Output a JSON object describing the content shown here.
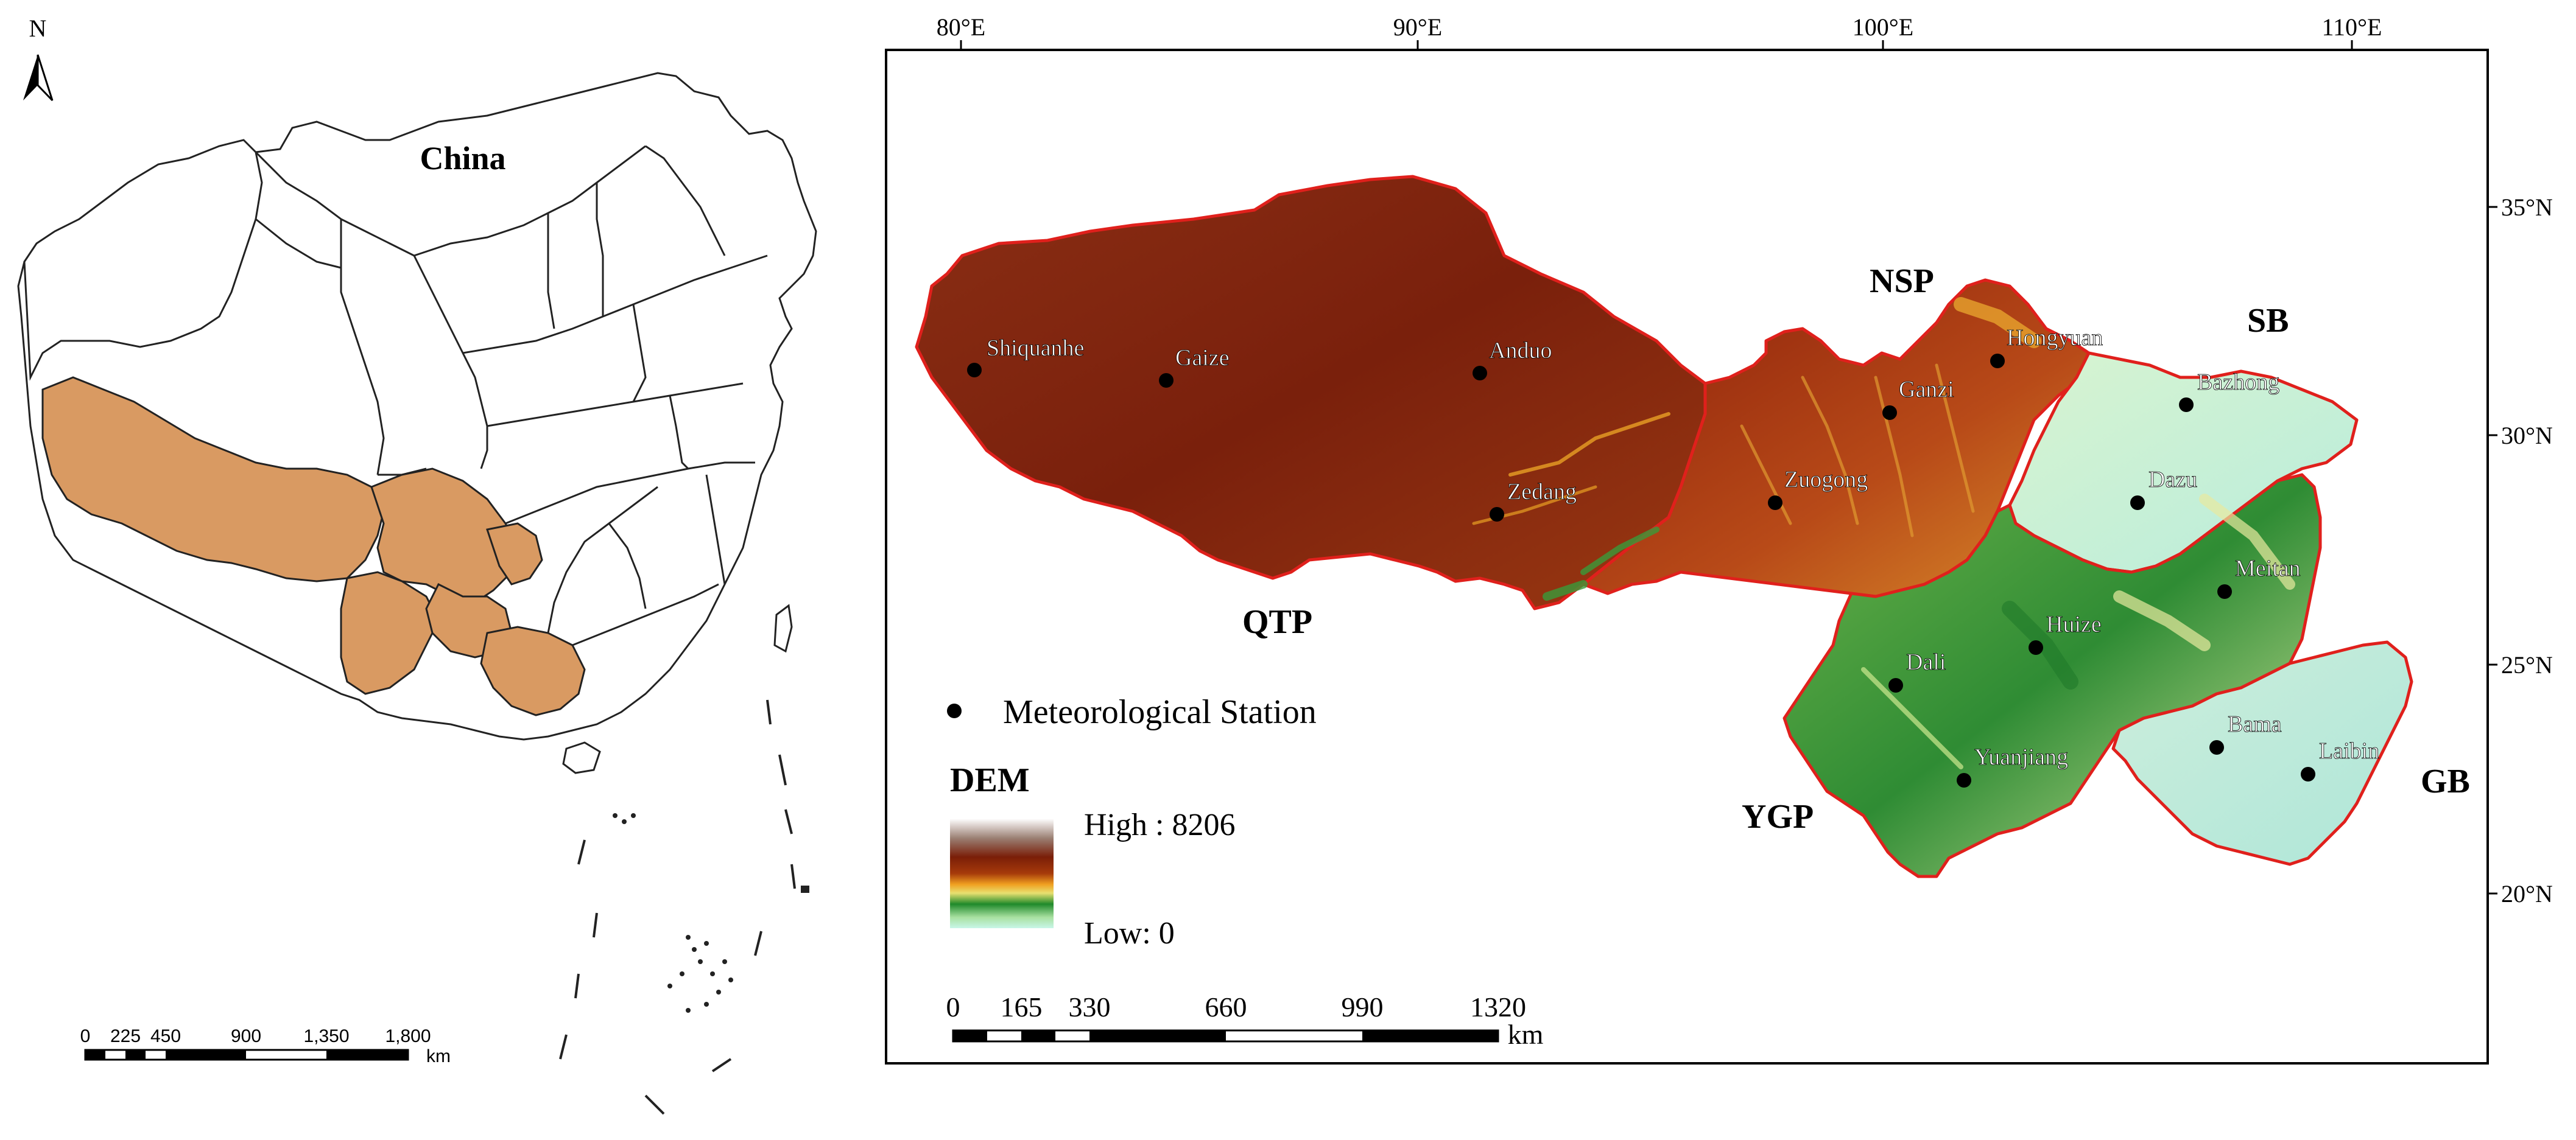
{
  "left_map": {
    "north_label": "N",
    "country_label": "China",
    "highlight_color": "#d99a62",
    "scale_bar": {
      "ticks": [
        "0",
        "225",
        "450",
        "900",
        "1,350",
        "1,800"
      ],
      "unit": "km"
    }
  },
  "right_map": {
    "longitude_labels": [
      "80°E",
      "90°E",
      "100°E",
      "110°E"
    ],
    "latitude_labels": [
      "35°N",
      "30°N",
      "25°N",
      "20°N"
    ],
    "regions": [
      {
        "code": "QTP",
        "fill": "#8c2a10"
      },
      {
        "code": "NSP",
        "fill": "#a63b12"
      },
      {
        "code": "SB",
        "fill": "#c9f0d8"
      },
      {
        "code": "YGP",
        "fill": "#3f9e3c"
      },
      {
        "code": "GB",
        "fill": "#b8e9d4"
      }
    ],
    "border_color": "#e0201c",
    "stations": [
      "Shiquanhe",
      "Gaize",
      "Anduo",
      "Zedang",
      "Zuogong",
      "Ganzi",
      "Hongyuan",
      "Bazhong",
      "Dazu",
      "Meitan",
      "Huize",
      "Dali",
      "Yuanjiang",
      "Bama",
      "Laibin"
    ],
    "legend": {
      "station_label": "Meteorological Station",
      "dem_title": "DEM",
      "high_label": "High : 8206",
      "low_label": "Low: 0"
    },
    "scale_bar": {
      "ticks": [
        "0",
        "165",
        "330",
        "660",
        "990",
        "1320"
      ],
      "unit": "km"
    }
  }
}
